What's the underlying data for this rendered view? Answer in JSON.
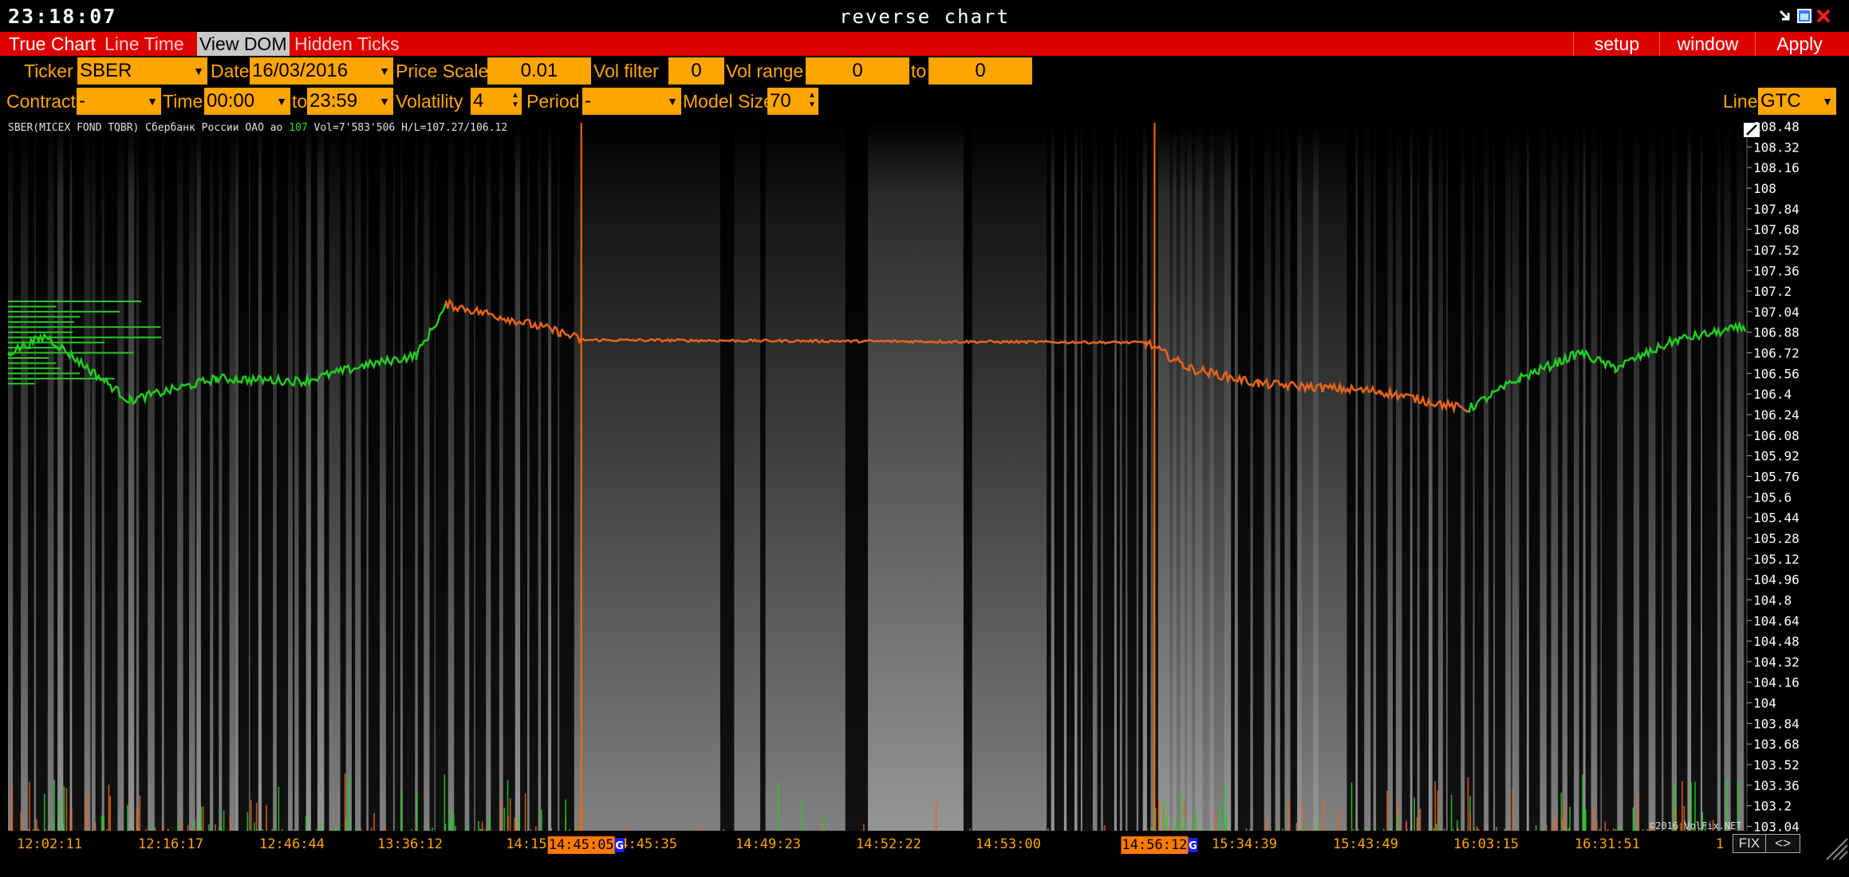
{
  "window": {
    "clock": "23:18:07",
    "title": "reverse chart"
  },
  "menu": {
    "tabs": [
      "True Chart",
      "Line Time",
      "View DOM",
      "Hidden Ticks"
    ],
    "active_tab": "View DOM",
    "right": [
      "setup",
      "window",
      "Apply"
    ]
  },
  "toolbar1": {
    "ticker_label": "Ticker",
    "ticker_value": "SBER",
    "date_label": "Date",
    "date_value": "16/03/2016",
    "price_scale_label": "Price Scale",
    "price_scale_value": "0.01",
    "vol_filter_label": "Vol filter",
    "vol_filter_value": "0",
    "vol_range_label": "Vol range",
    "vol_range_from": "0",
    "vol_range_to_label": "to",
    "vol_range_to": "0"
  },
  "toolbar2": {
    "contract_label": "Contract",
    "contract_value": "-",
    "time_label": "Time",
    "time_from": "00:00",
    "time_to_label": "to",
    "time_to": "23:59",
    "volatility_label": "Volatility",
    "volatility_value": "4",
    "period_label": "Period",
    "period_value": "-",
    "model_size_label": "Model Size",
    "model_size_value": "70",
    "line_label": "Line",
    "line_value": "GTC"
  },
  "info_line": {
    "prefix": "SBER(MICEX FOND TQBR) Сбербанк России ОАО ао ",
    "last": "107",
    "suffix": " Vol=7'583'506 H/L=107.27/106.12"
  },
  "copyright": "©2016 VolFix.NET",
  "fix_labels": [
    "FIX",
    "<>"
  ],
  "colors": {
    "up": "#22cc22",
    "down": "#e8641c",
    "marker": "#ff6a00",
    "axis_text": "#ffffff",
    "time_text": "#ffa500"
  },
  "chart_data": {
    "type": "line",
    "y_ticks": [
      108.48,
      108.32,
      108.16,
      108,
      107.84,
      107.68,
      107.52,
      107.36,
      107.2,
      107.04,
      106.88,
      106.72,
      106.56,
      106.4,
      106.24,
      106.08,
      105.92,
      105.76,
      105.6,
      105.44,
      105.28,
      105.12,
      104.96,
      104.8,
      104.64,
      104.48,
      104.32,
      104.16,
      104,
      103.84,
      103.68,
      103.52,
      103.36,
      103.2,
      103.04
    ],
    "ylim": [
      103.04,
      108.48
    ],
    "x_ticks": [
      "12:02:11",
      "12:16:17",
      "12:46:44",
      "13:36:12",
      "14:15",
      "14:45:35",
      "14:49:23",
      "14:52:22",
      "14:53:00",
      "14:5",
      "15:34:39",
      "15:43:49",
      "16:03:15",
      "16:31:51",
      "1"
    ],
    "x_highlighted": [
      {
        "label": "14:45:05",
        "tag": "G"
      },
      {
        "label": "14:56:12",
        "tag": "G"
      }
    ],
    "series": [
      {
        "direction": "up",
        "segments": [
          {
            "from": 0.0,
            "to": 0.022,
            "y": [
              106.72,
              106.85
            ]
          },
          {
            "from": 0.022,
            "to": 0.07,
            "y": [
              106.85,
              106.35
            ]
          },
          {
            "from": 0.07,
            "to": 0.12,
            "y": [
              106.35,
              106.52
            ]
          },
          {
            "from": 0.12,
            "to": 0.17,
            "y": [
              106.52,
              106.5
            ]
          },
          {
            "from": 0.17,
            "to": 0.205,
            "y": [
              106.5,
              106.62
            ]
          },
          {
            "from": 0.205,
            "to": 0.235,
            "y": [
              106.62,
              106.7
            ]
          },
          {
            "from": 0.235,
            "to": 0.252,
            "y": [
              106.7,
              107.08
            ]
          }
        ]
      },
      {
        "direction": "down",
        "segments": [
          {
            "from": 0.252,
            "to": 0.29,
            "y": [
              107.1,
              106.98
            ]
          },
          {
            "from": 0.29,
            "to": 0.318,
            "y": [
              106.98,
              106.88
            ]
          },
          {
            "from": 0.318,
            "to": 0.33,
            "y": [
              106.88,
              106.82
            ]
          },
          {
            "from": 0.33,
            "to": 0.655,
            "y": [
              106.82,
              106.8
            ]
          },
          {
            "from": 0.655,
            "to": 0.68,
            "y": [
              106.8,
              106.6
            ]
          },
          {
            "from": 0.68,
            "to": 0.72,
            "y": [
              106.6,
              106.48
            ]
          },
          {
            "from": 0.72,
            "to": 0.79,
            "y": [
              106.48,
              106.42
            ]
          },
          {
            "from": 0.79,
            "to": 0.84,
            "y": [
              106.42,
              106.28
            ]
          }
        ]
      },
      {
        "direction": "up",
        "segments": [
          {
            "from": 0.84,
            "to": 0.87,
            "y": [
              106.28,
              106.52
            ]
          },
          {
            "from": 0.87,
            "to": 0.905,
            "y": [
              106.52,
              106.72
            ]
          },
          {
            "from": 0.905,
            "to": 0.925,
            "y": [
              106.72,
              106.6
            ]
          },
          {
            "from": 0.925,
            "to": 0.96,
            "y": [
              106.6,
              106.82
            ]
          },
          {
            "from": 0.96,
            "to": 1.0,
            "y": [
              106.82,
              106.92
            ]
          }
        ]
      }
    ],
    "volume_profile": "left edge horizontal histogram",
    "grid": false
  }
}
